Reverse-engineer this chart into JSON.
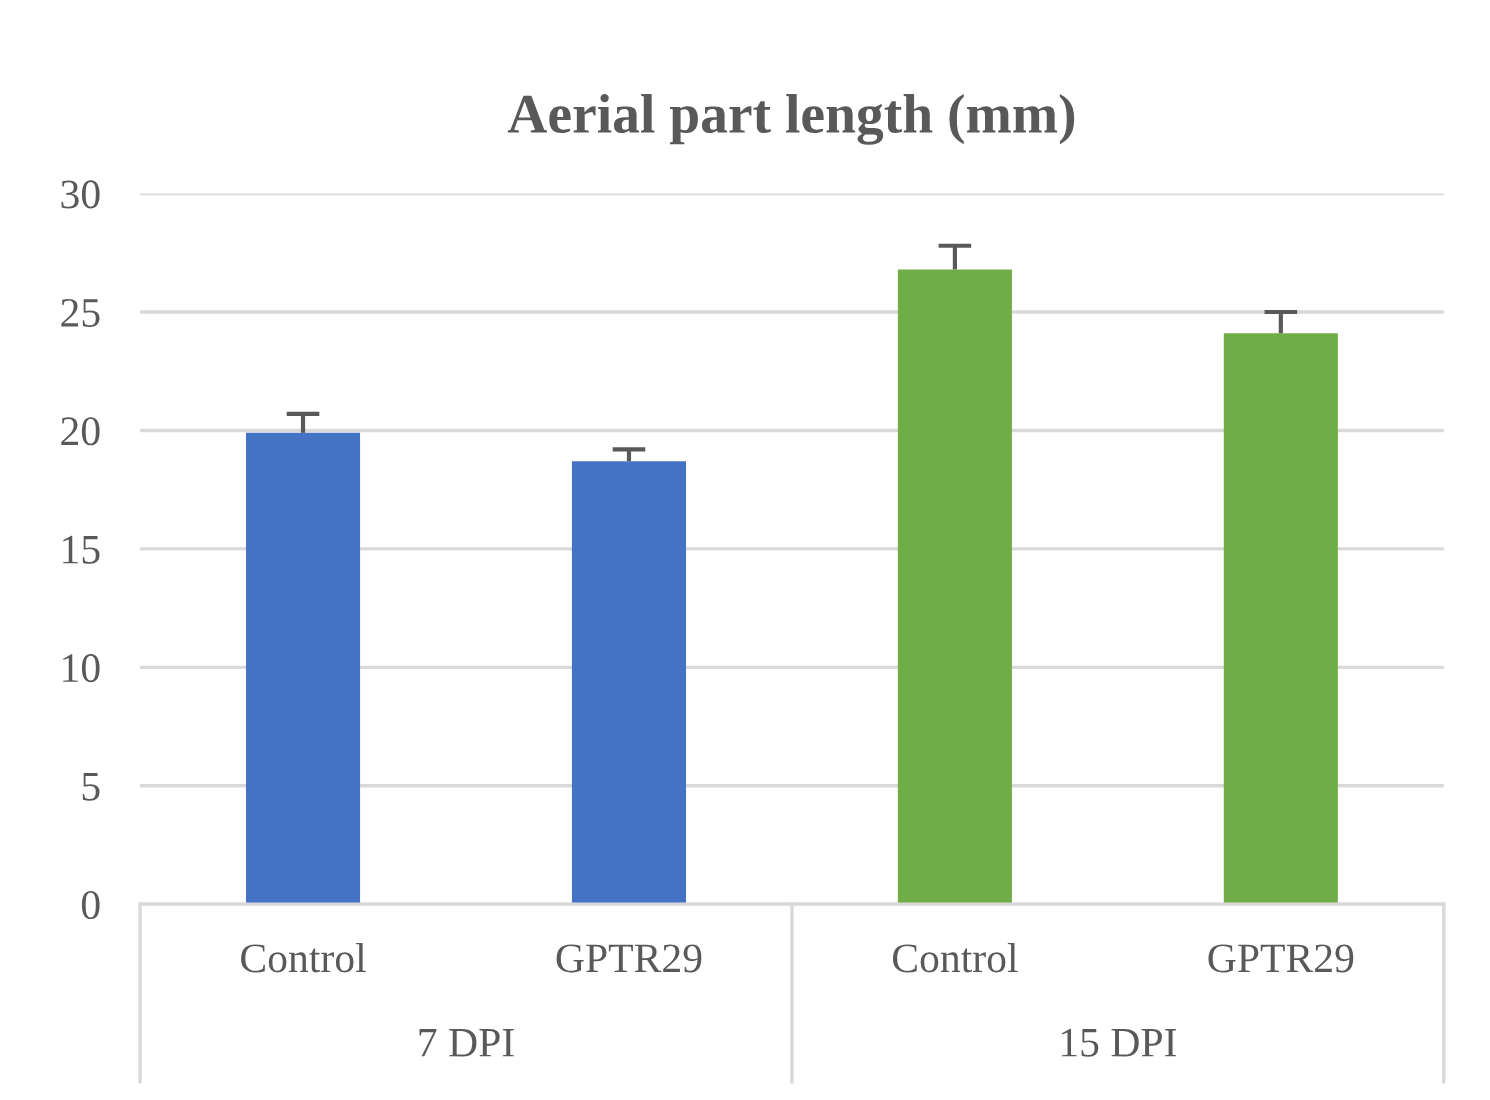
{
  "chart_data": {
    "type": "bar",
    "title": "Aerial part length (mm)",
    "categories": [
      "Control",
      "GPTR29",
      "Control",
      "GPTR29"
    ],
    "values": [
      19.9,
      18.7,
      26.8,
      24.1
    ],
    "colors": [
      "#4472c4",
      "#4472c4",
      "#70ad47",
      "#70ad47"
    ],
    "errors": [
      [
        19.9,
        20.7
      ],
      [
        18.7,
        19.2
      ],
      [
        26.8,
        27.8
      ],
      [
        24.1,
        25.0
      ]
    ],
    "annotations": [
      "7 DPI",
      "15 DPI"
    ],
    "ylim": [
      0,
      30
    ],
    "yticks": [
      0,
      5,
      10,
      15,
      20,
      25,
      30
    ],
    "grid": "y",
    "legend": false
  }
}
